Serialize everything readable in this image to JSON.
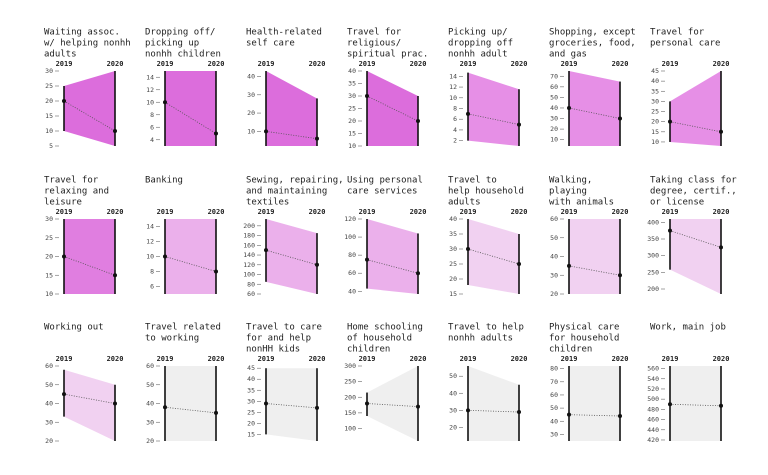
{
  "chart_data": [
    {
      "type": "range",
      "title": [
        "Waiting assoc.",
        "w/ helping nonhh",
        "adults"
      ],
      "categories": [
        "2019",
        "2020"
      ],
      "values": [
        20,
        10
      ],
      "lower": [
        10,
        5
      ],
      "upper": [
        25,
        30
      ],
      "ylim": [
        5,
        30
      ],
      "yticks": [
        5,
        10,
        15,
        20,
        25,
        30
      ],
      "color": "#dc6ddc"
    },
    {
      "type": "range",
      "title": [
        "Dropping off/",
        "picking up",
        "nonhh children"
      ],
      "categories": [
        "2019",
        "2020"
      ],
      "values": [
        10,
        5
      ],
      "lower": [
        3,
        3
      ],
      "upper": [
        15,
        15
      ],
      "ylim": [
        3,
        15
      ],
      "yticks": [
        4,
        6,
        8,
        10,
        12,
        14
      ],
      "color": "#dc6ddc"
    },
    {
      "type": "range",
      "title": [
        "Health-related",
        "self care"
      ],
      "categories": [
        "2019",
        "2020"
      ],
      "values": [
        10,
        6
      ],
      "lower": [
        2,
        2
      ],
      "upper": [
        43,
        28
      ],
      "ylim": [
        2,
        43
      ],
      "yticks": [
        10,
        20,
        30,
        40
      ],
      "color": "#dc6ddc"
    },
    {
      "type": "range",
      "title": [
        "Travel for",
        "religious/",
        "spiritual prac."
      ],
      "categories": [
        "2019",
        "2020"
      ],
      "values": [
        30,
        20
      ],
      "lower": [
        10,
        10
      ],
      "upper": [
        40,
        30
      ],
      "ylim": [
        10,
        40
      ],
      "yticks": [
        10,
        15,
        20,
        25,
        30,
        35,
        40
      ],
      "color": "#dc6ddc"
    },
    {
      "type": "range",
      "title": [
        "Picking up/",
        "dropping off",
        "nonhh adult"
      ],
      "categories": [
        "2019",
        "2020"
      ],
      "values": [
        7,
        5
      ],
      "lower": [
        2,
        1
      ],
      "upper": [
        14.7,
        11.6
      ],
      "ylim": [
        1,
        15
      ],
      "yticks": [
        2,
        4,
        6,
        8,
        10,
        12,
        14
      ],
      "color": "#e68fe6"
    },
    {
      "type": "range",
      "title": [
        "Shopping, except",
        "groceries, food,",
        "and gas"
      ],
      "categories": [
        "2019",
        "2020"
      ],
      "values": [
        40,
        30
      ],
      "lower": [
        4,
        4
      ],
      "upper": [
        75,
        65
      ],
      "ylim": [
        4,
        75
      ],
      "yticks": [
        10,
        20,
        30,
        40,
        50,
        60,
        70
      ],
      "color": "#e68fe6"
    },
    {
      "type": "range",
      "title": [
        "Travel for",
        "personal care"
      ],
      "categories": [
        "2019",
        "2020"
      ],
      "values": [
        20,
        15
      ],
      "lower": [
        10,
        8
      ],
      "upper": [
        30,
        45
      ],
      "ylim": [
        8,
        45
      ],
      "yticks": [
        10,
        15,
        20,
        25,
        30,
        35,
        40,
        45
      ],
      "color": "#e68fe6"
    },
    {
      "type": "range",
      "title": [
        "Travel for",
        "relaxing and",
        "leisure"
      ],
      "categories": [
        "2019",
        "2020"
      ],
      "values": [
        20,
        15
      ],
      "lower": [
        10,
        10
      ],
      "upper": [
        30,
        30
      ],
      "ylim": [
        10,
        30
      ],
      "yticks": [
        10,
        15,
        20,
        25,
        30
      ],
      "color": "#e07ee0"
    },
    {
      "type": "range",
      "title": [
        "Banking"
      ],
      "categories": [
        "2019",
        "2020"
      ],
      "values": [
        10,
        8
      ],
      "lower": [
        5,
        5
      ],
      "upper": [
        15,
        15
      ],
      "ylim": [
        5,
        15
      ],
      "yticks": [
        6,
        8,
        10,
        12,
        14
      ],
      "color": "#ebb0eb"
    },
    {
      "type": "range",
      "title": [
        "Sewing, repairing,",
        "and maintaining",
        "textiles"
      ],
      "categories": [
        "2019",
        "2020"
      ],
      "values": [
        150,
        120
      ],
      "lower": [
        85,
        60
      ],
      "upper": [
        214,
        185
      ],
      "ylim": [
        60,
        214
      ],
      "yticks": [
        60,
        80,
        100,
        120,
        140,
        160,
        180,
        200
      ],
      "color": "#ebb0eb"
    },
    {
      "type": "range",
      "title": [
        "Using personal",
        "care services"
      ],
      "categories": [
        "2019",
        "2020"
      ],
      "values": [
        75,
        60
      ],
      "lower": [
        43,
        37
      ],
      "upper": [
        120,
        104
      ],
      "ylim": [
        37,
        120
      ],
      "yticks": [
        40,
        60,
        80,
        100,
        120
      ],
      "color": "#ebb0eb"
    },
    {
      "type": "range",
      "title": [
        "Travel to",
        "help household",
        "adults"
      ],
      "categories": [
        "2019",
        "2020"
      ],
      "values": [
        30,
        25
      ],
      "lower": [
        18,
        15
      ],
      "upper": [
        40,
        35
      ],
      "ylim": [
        15,
        40
      ],
      "yticks": [
        15,
        20,
        25,
        30,
        35,
        40
      ],
      "color": "#f1d1f1"
    },
    {
      "type": "range",
      "title": [
        "Walking,",
        "playing",
        "with animals"
      ],
      "categories": [
        "2019",
        "2020"
      ],
      "values": [
        35,
        30
      ],
      "lower": [
        20,
        20
      ],
      "upper": [
        60,
        60
      ],
      "ylim": [
        20,
        60
      ],
      "yticks": [
        20,
        30,
        40,
        50,
        60
      ],
      "color": "#f1d1f1"
    },
    {
      "type": "range",
      "title": [
        "Taking class for",
        "degree, certif.,",
        "or license"
      ],
      "categories": [
        "2019",
        "2020"
      ],
      "values": [
        375,
        325
      ],
      "lower": [
        258,
        185
      ],
      "upper": [
        410,
        410
      ],
      "ylim": [
        185,
        410
      ],
      "yticks": [
        200,
        250,
        300,
        350,
        400
      ],
      "color": "#f1d1f1"
    },
    {
      "type": "range",
      "title": [
        "Working out"
      ],
      "categories": [
        "2019",
        "2020"
      ],
      "values": [
        45,
        40
      ],
      "lower": [
        33,
        20
      ],
      "upper": [
        58,
        50
      ],
      "ylim": [
        20,
        60
      ],
      "yticks": [
        20,
        30,
        40,
        50,
        60
      ],
      "color": "#f1d1f1"
    },
    {
      "type": "range",
      "title": [
        "Travel related",
        "to working"
      ],
      "categories": [
        "2019",
        "2020"
      ],
      "values": [
        38,
        35
      ],
      "lower": [
        20,
        20
      ],
      "upper": [
        60,
        60
      ],
      "ylim": [
        20,
        60
      ],
      "yticks": [
        20,
        30,
        40,
        50,
        60
      ],
      "color": "#efefef"
    },
    {
      "type": "range",
      "title": [
        "Travel to care",
        "for and help",
        "nonHH kids"
      ],
      "categories": [
        "2019",
        "2020"
      ],
      "values": [
        29,
        27
      ],
      "lower": [
        15,
        12
      ],
      "upper": [
        45,
        45
      ],
      "ylim": [
        12,
        46
      ],
      "yticks": [
        15,
        20,
        25,
        30,
        35,
        40,
        45
      ],
      "color": "#efefef"
    },
    {
      "type": "range",
      "title": [
        "Home schooling",
        "of household",
        "children"
      ],
      "categories": [
        "2019",
        "2020"
      ],
      "values": [
        180,
        170
      ],
      "lower": [
        140,
        60
      ],
      "upper": [
        215,
        300
      ],
      "ylim": [
        60,
        300
      ],
      "yticks": [
        100,
        150,
        200,
        250,
        300
      ],
      "color": "#efefef"
    },
    {
      "type": "range",
      "title": [
        "Travel to help",
        "nonhh adults"
      ],
      "categories": [
        "2019",
        "2020"
      ],
      "values": [
        30,
        29
      ],
      "lower": [
        12,
        12
      ],
      "upper": [
        56,
        45
      ],
      "ylim": [
        12,
        56
      ],
      "yticks": [
        20,
        30,
        40,
        50
      ],
      "color": "#efefef"
    },
    {
      "type": "range",
      "title": [
        "Physical care",
        "for household",
        "children"
      ],
      "categories": [
        "2019",
        "2020"
      ],
      "values": [
        45,
        44
      ],
      "lower": [
        25,
        25
      ],
      "upper": [
        82,
        82
      ],
      "ylim": [
        25,
        82
      ],
      "yticks": [
        30,
        40,
        50,
        60,
        70,
        80
      ],
      "color": "#efefef"
    },
    {
      "type": "range",
      "title": [
        "Work, main job"
      ],
      "categories": [
        "2019",
        "2020"
      ],
      "values": [
        490,
        487
      ],
      "lower": [
        418,
        418
      ],
      "upper": [
        565,
        565
      ],
      "ylim": [
        418,
        565
      ],
      "yticks": [
        420,
        440,
        460,
        480,
        500,
        520,
        540,
        560
      ],
      "color": "#efefef"
    }
  ]
}
